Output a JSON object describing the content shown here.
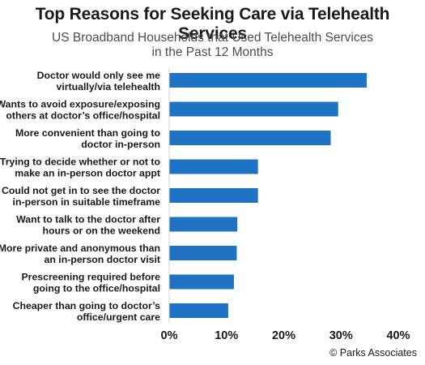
{
  "chart_data": {
    "type": "bar",
    "orientation": "horizontal",
    "title": "Top Reasons for Seeking Care via Telehealth Services",
    "subtitle_lines": [
      "US Broadband Households that Used Telehealth Services",
      "in the Past 12 Months"
    ],
    "categories": [
      [
        "Doctor would only see me",
        "virtually/via telehealth"
      ],
      [
        "Wants to avoid exposure/exposing",
        "others at doctor’s office/hospital"
      ],
      [
        "More convenient than going to",
        "doctor in-person"
      ],
      [
        "Trying to decide whether or not to",
        "make an in-person doctor appt"
      ],
      [
        "Could not get in to see the doctor",
        "in-person in suitable timeframe"
      ],
      [
        "Want to talk to the doctor after",
        "hours or on the weekend"
      ],
      [
        "More private and anonymous than",
        "an in-person doctor visit"
      ],
      [
        "Prescreening required before",
        "going to the office/hospital"
      ],
      [
        "Cheaper than going to doctor’s",
        "office/urgent care"
      ]
    ],
    "values": [
      34.5,
      29.5,
      28.2,
      15.5,
      15.5,
      11.9,
      11.8,
      11.3,
      10.3
    ],
    "xlim": [
      0,
      40
    ],
    "xticks": [
      0,
      10,
      20,
      30,
      40
    ],
    "xtick_labels": [
      "0%",
      "10%",
      "20%",
      "30%",
      "40%"
    ],
    "bar_color": "#1f73c4",
    "grid": false,
    "source": "© Parks Associates"
  }
}
